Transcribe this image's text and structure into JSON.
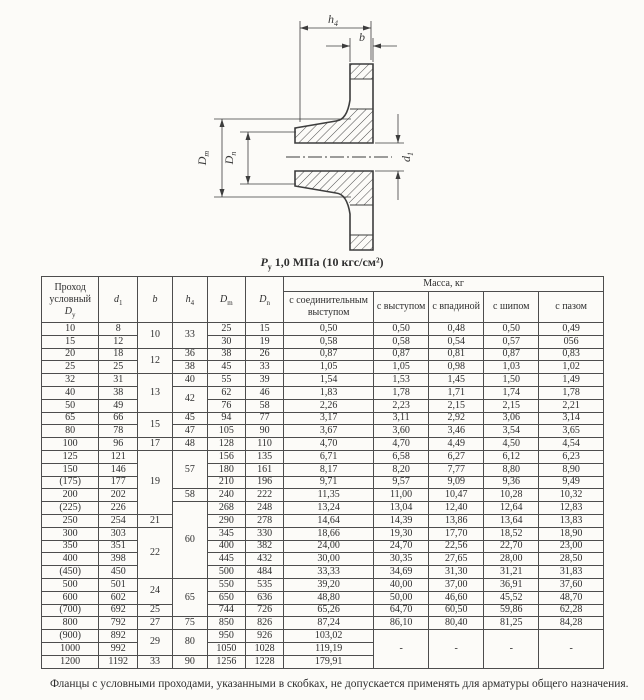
{
  "drawing": {
    "h4_base": "h",
    "h4_sub": "4",
    "b": "b",
    "dm_base": "D",
    "dm_sub": "m",
    "dn_base": "D",
    "dn_sub": "n",
    "d1_base": "d",
    "d1_sub": "1"
  },
  "caption": {
    "p_base": "P",
    "p_sub": "у",
    "text": "1,0 МПа (10 кгс/см²)"
  },
  "table": {
    "mass_header": "Масса, кг",
    "columns": [
      {
        "text": "Проход условный",
        "sym": "D",
        "sub": "у"
      },
      {
        "sym": "d",
        "sub": "1"
      },
      {
        "sym": "b"
      },
      {
        "sym": "h",
        "sub": "4"
      },
      {
        "sym": "D",
        "sub": "m"
      },
      {
        "sym": "D",
        "sub": "n"
      }
    ],
    "mass_columns": [
      "с соединительным выступом",
      "с выступом",
      "с впадиной",
      "с шипом",
      "с пазом"
    ],
    "col_widths": [
      "10.2%",
      "6.9%",
      "6.2%",
      "6.2%",
      "6.8%",
      "6.8%",
      "16%",
      "9.8%",
      "9.8%",
      "9.8%",
      "11.5%"
    ],
    "rows": [
      [
        "10",
        "8",
        {
          "v": "10",
          "rs": 2
        },
        {
          "v": "33",
          "rs": 2
        },
        "25",
        "15",
        "0,50",
        "0,50",
        "0,48",
        "0,50",
        "0,49"
      ],
      [
        "15",
        "12",
        null,
        null,
        "30",
        "19",
        "0,58",
        "0,58",
        "0,54",
        "0,57",
        "056"
      ],
      [
        "20",
        "18",
        {
          "v": "12",
          "rs": 2
        },
        "36",
        "38",
        "26",
        "0,87",
        "0,87",
        "0,81",
        "0,87",
        "0,83"
      ],
      [
        "25",
        "25",
        null,
        "38",
        "45",
        "33",
        "1,05",
        "1,05",
        "0,98",
        "1,03",
        "1,02"
      ],
      [
        "32",
        "31",
        {
          "v": "13",
          "rs": 3
        },
        "40",
        "55",
        "39",
        "1,54",
        "1,53",
        "1,45",
        "1,50",
        "1,49"
      ],
      [
        "40",
        "38",
        null,
        {
          "v": "42",
          "rs": 2
        },
        "62",
        "46",
        "1,83",
        "1,78",
        "1,71",
        "1,74",
        "1,78"
      ],
      [
        "50",
        "49",
        null,
        null,
        "76",
        "58",
        "2,26",
        "2,23",
        "2,15",
        "2,15",
        "2,21"
      ],
      [
        "65",
        "66",
        {
          "v": "15",
          "rs": 2
        },
        "45",
        "94",
        "77",
        "3,17",
        "3,11",
        "2,92",
        "3,06",
        "3,14"
      ],
      [
        "80",
        "78",
        null,
        "47",
        "105",
        "90",
        "3,67",
        "3,60",
        "3,46",
        "3,54",
        "3,65"
      ],
      [
        "100",
        "96",
        "17",
        "48",
        "128",
        "110",
        "4,70",
        "4,70",
        "4,49",
        "4,50",
        "4,54"
      ],
      [
        "125",
        "121",
        {
          "v": "19",
          "rs": 5
        },
        {
          "v": "57",
          "rs": 3
        },
        "156",
        "135",
        "6,71",
        "6,58",
        "6,27",
        "6,12",
        "6,23"
      ],
      [
        "150",
        "146",
        null,
        null,
        "180",
        "161",
        "8,17",
        "8,20",
        "7,77",
        "8,80",
        "8,90"
      ],
      [
        "(175)",
        "177",
        null,
        null,
        "210",
        "196",
        "9,71",
        "9,57",
        "9,09",
        "9,36",
        "9,49"
      ],
      [
        "200",
        "202",
        null,
        "58",
        "240",
        "222",
        "11,35",
        "11,00",
        "10,47",
        "10,28",
        "10,32"
      ],
      [
        "(225)",
        "226",
        null,
        {
          "v": "60",
          "rs": 6
        },
        "268",
        "248",
        "13,24",
        "13,04",
        "12,40",
        "12,64",
        "12,83"
      ],
      [
        "250",
        "254",
        "21",
        null,
        "290",
        "278",
        "14,64",
        "14,39",
        "13,86",
        "13,64",
        "13,83"
      ],
      [
        "300",
        "303",
        {
          "v": "22",
          "rs": 4
        },
        null,
        "345",
        "330",
        "18,66",
        "19,30",
        "17,70",
        "18,52",
        "18,90"
      ],
      [
        "350",
        "351",
        null,
        null,
        "400",
        "382",
        "24,00",
        "24,70",
        "22,56",
        "22,70",
        "23,00"
      ],
      [
        "400",
        "398",
        null,
        null,
        "445",
        "432",
        "30,00",
        "30,35",
        "27,65",
        "28,00",
        "28,50"
      ],
      [
        "(450)",
        "450",
        null,
        null,
        "500",
        "484",
        "33,33",
        "34,69",
        "31,30",
        "31,21",
        "31,83"
      ],
      [
        "500",
        "501",
        {
          "v": "24",
          "rs": 2
        },
        {
          "v": "65",
          "rs": 3
        },
        "550",
        "535",
        "39,20",
        "40,00",
        "37,00",
        "36,91",
        "37,60"
      ],
      [
        "600",
        "602",
        null,
        null,
        "650",
        "636",
        "48,80",
        "50,00",
        "46,60",
        "45,52",
        "48,70"
      ],
      [
        "(700)",
        "692",
        "25",
        null,
        "744",
        "726",
        "65,26",
        "64,70",
        "60,50",
        "59,86",
        "62,28"
      ],
      [
        "800",
        "792",
        "27",
        "75",
        "850",
        "826",
        "87,24",
        "86,10",
        "80,40",
        "81,25",
        "84,28"
      ],
      [
        "(900)",
        "892",
        {
          "v": "29",
          "rs": 2
        },
        {
          "v": "80",
          "rs": 2
        },
        "950",
        "926",
        "103,02",
        {
          "v": "-",
          "rs": 3
        },
        {
          "v": "-",
          "rs": 3
        },
        {
          "v": "-",
          "rs": 3
        },
        {
          "v": "-",
          "rs": 3
        }
      ],
      [
        "1000",
        "992",
        null,
        null,
        "1050",
        "1028",
        "119,19",
        null,
        null,
        null,
        null
      ],
      [
        "1200",
        "1192",
        "33",
        "90",
        "1256",
        "1228",
        "179,91",
        null,
        null,
        null,
        null
      ]
    ]
  },
  "footnote": "Фланцы с условными проходами, указанными в скобках, не допускается применять для арматуры общего назначения."
}
